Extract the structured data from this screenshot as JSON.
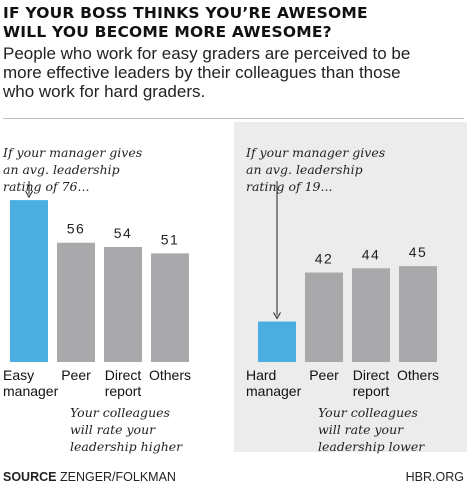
{
  "header": {
    "title_line1": "IF YOUR BOSS THINKS YOU’RE AWESOME",
    "title_line2": "WILL YOU BECOME MORE AWESOME?",
    "subtitle_line1": "People who work for easy graders are perceived to be",
    "subtitle_line2": "more effective leaders by their colleagues than those",
    "subtitle_line3": "who work for hard graders."
  },
  "colors": {
    "highlight": "#4aaee0",
    "bar": "#a9a9ab",
    "panel_bg": "#ececec"
  },
  "chart_data": [
    {
      "type": "bar",
      "categories": [
        [
          "Easy",
          "manager"
        ],
        [
          "Peer"
        ],
        [
          "Direct",
          "report"
        ],
        [
          "Others"
        ]
      ],
      "values": [
        76,
        56,
        54,
        51
      ],
      "ylim": [
        0,
        100
      ],
      "highlight_index": 0,
      "annotation_top": [
        "If your manager gives",
        "an avg. leadership",
        "rating of 76..."
      ],
      "annotation_bottom": [
        "Your colleagues",
        "will rate your",
        "leadership higher"
      ],
      "background": "none"
    },
    {
      "type": "bar",
      "categories": [
        [
          "Hard",
          "manager"
        ],
        [
          "Peer"
        ],
        [
          "Direct",
          "report"
        ],
        [
          "Others"
        ]
      ],
      "values": [
        19,
        42,
        44,
        45
      ],
      "ylim": [
        0,
        100
      ],
      "highlight_index": 0,
      "annotation_top": [
        "If your manager gives",
        "an avg. leadership",
        "rating of 19..."
      ],
      "annotation_bottom": [
        "Your colleagues",
        "will rate your",
        "leadership lower"
      ],
      "background": "shaded"
    }
  ],
  "footer": {
    "source_label": "SOURCE",
    "source_text": "ZENGER/FOLKMAN",
    "brand": "HBR.ORG"
  }
}
